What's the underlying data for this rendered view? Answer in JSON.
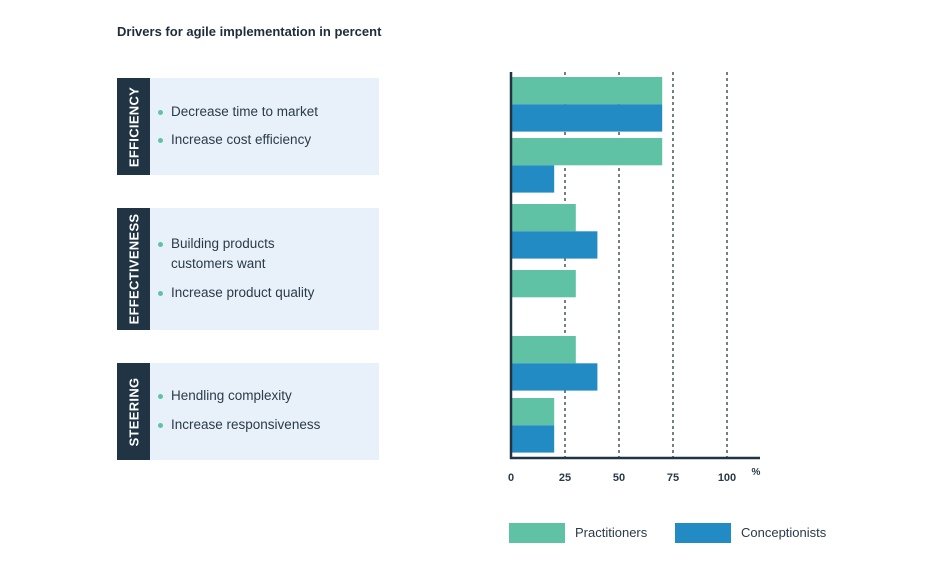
{
  "title": "Drivers for agile implementation in percent",
  "groups": [
    {
      "label": "EFFICIENCY",
      "items": [
        "Decrease time to market",
        "Increase cost efficiency"
      ]
    },
    {
      "label": "EFFECTIVENESS",
      "items": [
        "Building products customers want",
        "Increase product quality"
      ]
    },
    {
      "label": "STEERING",
      "items": [
        "Hendling complexity",
        "Increase responsiveness"
      ]
    }
  ],
  "colors": {
    "Practitioners": "#5fc2a4",
    "Conceptionists": "#238bc3",
    "tag": "#213444",
    "panel": "#e8f1fa"
  },
  "chart_data": {
    "type": "bar",
    "orientation": "horizontal",
    "categories": [
      "Decrease time to market",
      "Increase cost efficiency",
      "Building products customers want",
      "Increase product quality",
      "Hendling complexity",
      "Increase responsiveness"
    ],
    "series": [
      {
        "name": "Practitioners",
        "values": [
          70,
          70,
          30,
          30,
          30,
          20
        ]
      },
      {
        "name": "Conceptionists",
        "values": [
          70,
          20,
          40,
          0,
          40,
          20
        ]
      }
    ],
    "xlim": [
      0,
      110
    ],
    "xticks": [
      "0",
      "25",
      "50",
      "75",
      "100"
    ],
    "xunit": "%",
    "grid": "vertical dashed",
    "legend": "bottom"
  }
}
